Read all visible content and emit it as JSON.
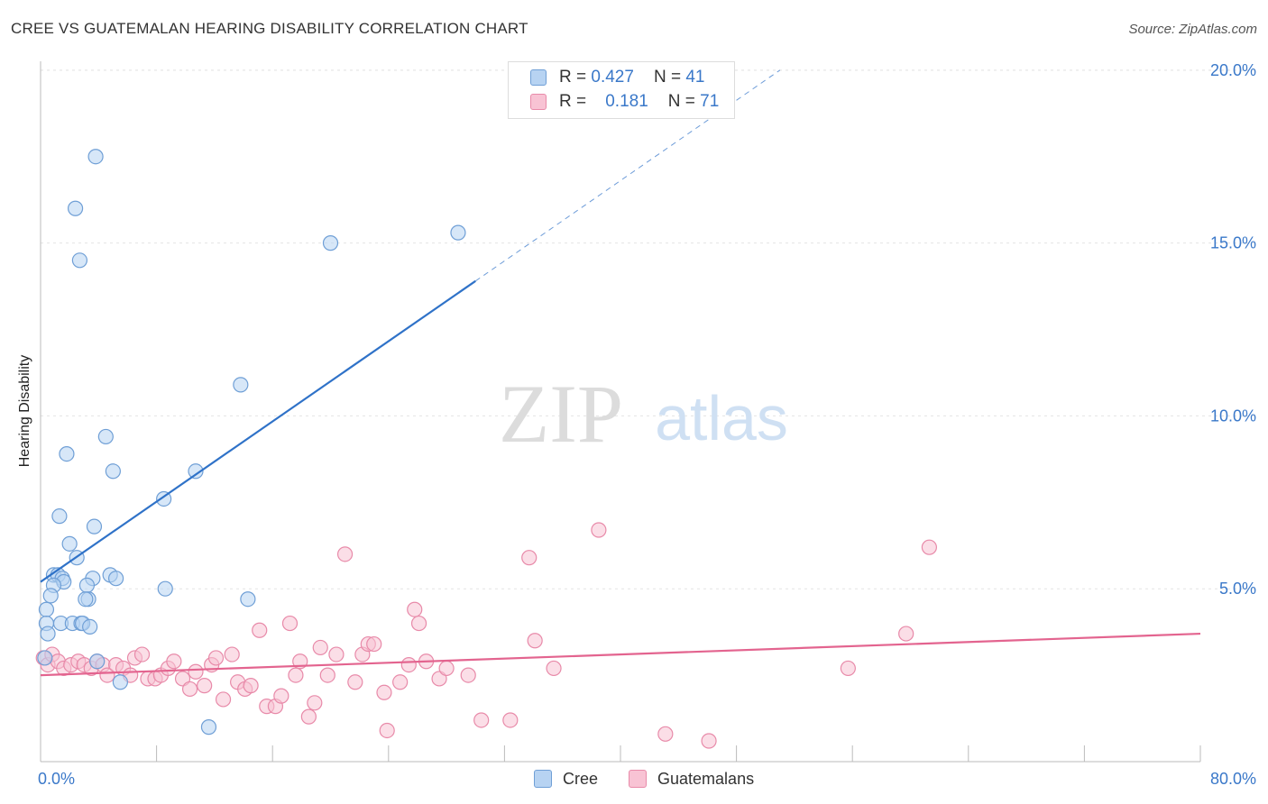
{
  "header": {
    "title": "CREE VS GUATEMALAN HEARING DISABILITY CORRELATION CHART",
    "source": "Source: ZipAtlas.com"
  },
  "watermark": {
    "zip": "ZIP",
    "atlas": "atlas"
  },
  "legend": {
    "r_label": "R =",
    "n_label": "N =",
    "series": [
      {
        "name": "Cree",
        "r": "0.427",
        "n": "41"
      },
      {
        "name": "Guatemalans",
        "r": "0.181",
        "n": "71"
      }
    ]
  },
  "colors": {
    "cree_fill": "#b7d3f2",
    "cree_stroke": "#6f9fd6",
    "cree_line": "#2f72c8",
    "guat_fill": "#f8c3d4",
    "guat_stroke": "#e88aa9",
    "guat_line": "#e3648f",
    "axis_text": "#3a78c9",
    "grid": "#e4e4e4"
  },
  "chart_data": {
    "type": "scatter",
    "title": "CREE VS GUATEMALAN HEARING DISABILITY CORRELATION CHART",
    "xlabel": "",
    "ylabel": "Hearing Disability",
    "xlim": [
      0,
      80
    ],
    "ylim": [
      0,
      21
    ],
    "x_tick_labels": [
      "0.0%",
      "80.0%"
    ],
    "y_ticks": [
      5,
      10,
      15,
      20
    ],
    "y_tick_labels": [
      "5.0%",
      "10.0%",
      "15.0%",
      "20.0%"
    ],
    "legend_position": "top-center",
    "series": [
      {
        "name": "Cree",
        "r": 0.427,
        "n": 41,
        "trend": {
          "x0": 0.0,
          "y0": 5.2,
          "x1": 30.0,
          "y1": 13.9,
          "dashed_to_x": 51.0,
          "dashed_to_y": 20.0
        },
        "points": [
          [
            3.8,
            17.5
          ],
          [
            2.4,
            16.0
          ],
          [
            2.7,
            14.5
          ],
          [
            20.0,
            15.0
          ],
          [
            28.8,
            15.3
          ],
          [
            13.8,
            10.9
          ],
          [
            4.5,
            9.4
          ],
          [
            1.8,
            8.9
          ],
          [
            5.0,
            8.4
          ],
          [
            10.7,
            8.4
          ],
          [
            8.5,
            7.6
          ],
          [
            1.3,
            7.1
          ],
          [
            3.7,
            6.8
          ],
          [
            2.0,
            6.3
          ],
          [
            2.5,
            5.9
          ],
          [
            0.9,
            5.4
          ],
          [
            1.2,
            5.4
          ],
          [
            1.5,
            5.3
          ],
          [
            1.6,
            5.2
          ],
          [
            0.9,
            5.1
          ],
          [
            3.6,
            5.3
          ],
          [
            4.8,
            5.4
          ],
          [
            5.2,
            5.3
          ],
          [
            3.2,
            5.1
          ],
          [
            8.6,
            5.0
          ],
          [
            0.7,
            4.8
          ],
          [
            3.3,
            4.7
          ],
          [
            3.1,
            4.7
          ],
          [
            14.3,
            4.7
          ],
          [
            0.4,
            4.4
          ],
          [
            0.4,
            4.0
          ],
          [
            1.4,
            4.0
          ],
          [
            2.2,
            4.0
          ],
          [
            2.8,
            4.0
          ],
          [
            2.9,
            4.0
          ],
          [
            3.4,
            3.9
          ],
          [
            0.5,
            3.7
          ],
          [
            0.3,
            3.0
          ],
          [
            3.9,
            2.9
          ],
          [
            5.5,
            2.3
          ],
          [
            11.6,
            1.0
          ]
        ]
      },
      {
        "name": "Guatemalans",
        "r": 0.181,
        "n": 71,
        "trend": {
          "x0": 0.0,
          "y0": 2.5,
          "x1": 80.0,
          "y1": 3.7
        },
        "points": [
          [
            0.2,
            3.0
          ],
          [
            0.5,
            2.8
          ],
          [
            0.8,
            3.1
          ],
          [
            1.2,
            2.9
          ],
          [
            1.6,
            2.7
          ],
          [
            2.1,
            2.8
          ],
          [
            2.6,
            2.9
          ],
          [
            3.0,
            2.8
          ],
          [
            3.5,
            2.7
          ],
          [
            3.9,
            2.9
          ],
          [
            4.3,
            2.8
          ],
          [
            4.6,
            2.5
          ],
          [
            5.2,
            2.8
          ],
          [
            5.7,
            2.7
          ],
          [
            6.2,
            2.5
          ],
          [
            6.5,
            3.0
          ],
          [
            7.0,
            3.1
          ],
          [
            7.4,
            2.4
          ],
          [
            7.9,
            2.4
          ],
          [
            8.3,
            2.5
          ],
          [
            8.8,
            2.7
          ],
          [
            9.2,
            2.9
          ],
          [
            9.8,
            2.4
          ],
          [
            10.3,
            2.1
          ],
          [
            10.7,
            2.6
          ],
          [
            11.3,
            2.2
          ],
          [
            11.8,
            2.8
          ],
          [
            12.1,
            3.0
          ],
          [
            12.6,
            1.8
          ],
          [
            13.2,
            3.1
          ],
          [
            13.6,
            2.3
          ],
          [
            14.1,
            2.1
          ],
          [
            14.5,
            2.2
          ],
          [
            15.1,
            3.8
          ],
          [
            15.6,
            1.6
          ],
          [
            16.2,
            1.6
          ],
          [
            16.6,
            1.9
          ],
          [
            17.2,
            4.0
          ],
          [
            17.6,
            2.5
          ],
          [
            17.9,
            2.9
          ],
          [
            18.5,
            1.3
          ],
          [
            18.9,
            1.7
          ],
          [
            19.3,
            3.3
          ],
          [
            19.8,
            2.5
          ],
          [
            20.4,
            3.1
          ],
          [
            21.0,
            6.0
          ],
          [
            21.7,
            2.3
          ],
          [
            22.2,
            3.1
          ],
          [
            22.6,
            3.4
          ],
          [
            23.0,
            3.4
          ],
          [
            23.7,
            2.0
          ],
          [
            23.9,
            0.9
          ],
          [
            24.8,
            2.3
          ],
          [
            25.4,
            2.8
          ],
          [
            25.8,
            4.4
          ],
          [
            26.1,
            4.0
          ],
          [
            26.6,
            2.9
          ],
          [
            27.5,
            2.4
          ],
          [
            28.0,
            2.7
          ],
          [
            29.5,
            2.5
          ],
          [
            30.4,
            1.2
          ],
          [
            32.4,
            1.2
          ],
          [
            33.7,
            5.9
          ],
          [
            34.1,
            3.5
          ],
          [
            35.4,
            2.7
          ],
          [
            38.5,
            6.7
          ],
          [
            43.1,
            0.8
          ],
          [
            46.1,
            0.6
          ],
          [
            55.7,
            2.7
          ],
          [
            59.7,
            3.7
          ],
          [
            61.3,
            6.2
          ]
        ]
      }
    ]
  }
}
